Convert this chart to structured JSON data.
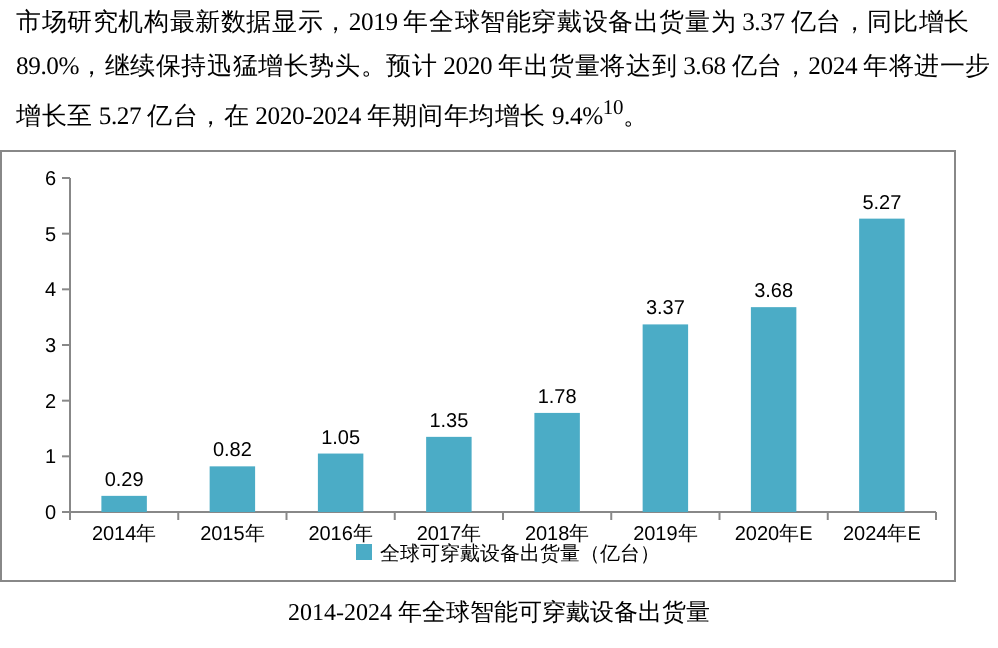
{
  "chart_data": {
    "type": "bar",
    "annotations": [
      "市场研究机构最新数据显示，2019 年全球智能穿戴设备出货量为 3.37 亿台，同比增长 89.0%，继续保持迅猛增长势头。预计 2020 年出货量将达到 3.68 亿台，2024 年将进一步增长至 5.27 亿台，在 2020-2024 年期间年均增长 9.4%$^{10}$。",
      "2014-2024 年全球智能可穿戴设备出货量"
    ],
    "categories": [
      "2014年",
      "2015年",
      "2016年",
      "2017年",
      "2018年",
      "2019年",
      "2020年E",
      "2024年E"
    ],
    "series": [
      {
        "name": "全球可穿戴设备出货量（亿台）",
        "color": "#4bacc6",
        "values": [
          0.29,
          0.82,
          1.05,
          1.35,
          1.78,
          3.37,
          3.68,
          5.27
        ]
      }
    ],
    "ylim": [
      0,
      6
    ],
    "yticks": [
      0,
      1,
      2,
      3,
      4,
      5,
      6
    ],
    "data_labels": true,
    "legend": "bottom"
  }
}
